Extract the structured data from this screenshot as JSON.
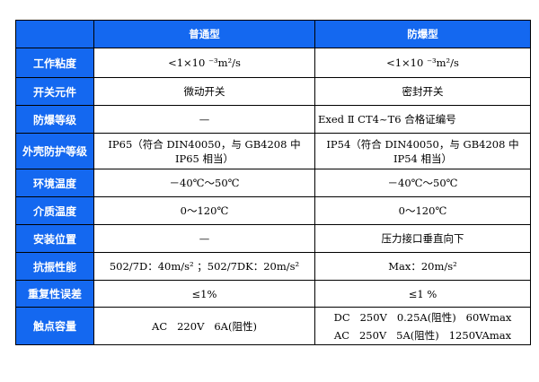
{
  "header": {
    "corner": "",
    "col1": "普通型",
    "col2": "防爆型"
  },
  "rows": [
    {
      "label": "工作粘度",
      "normal": "<1×10 ⁻³m²/s",
      "explosion": "<1×10 ⁻³m²/s"
    },
    {
      "label": "开关元件",
      "normal": "微动开关",
      "explosion": "密封开关"
    },
    {
      "label": "防爆等级",
      "normal": "—",
      "explosion": "Exed Ⅱ CT4~T6 合格证编号"
    },
    {
      "label": "外壳防护等级",
      "normal": "IP65（符合 DIN40050，与 GB4208 中 IP65 相当）",
      "explosion": "IP54（符合 DIN40050，与 GB4208 中 IP54 相当）"
    },
    {
      "label": "环境温度",
      "normal": "－40℃～50℃",
      "explosion": "－40℃～50℃"
    },
    {
      "label": "介质温度",
      "normal": "0～120℃",
      "explosion": "0～120℃"
    },
    {
      "label": "安装位置",
      "normal": "—",
      "explosion": "压力接口垂直向下"
    },
    {
      "label": "抗振性能",
      "normal": "502/7D：40m/s² ；502/7DK：20m/s²",
      "explosion": "Max：20m/s²"
    },
    {
      "label": "重复性误差",
      "normal": "≤1%",
      "explosion": "≤1 %"
    },
    {
      "label": "触点容量",
      "normal": "AC   220V   6A(阻性)",
      "explosion_line1": "DC   250V   0.25A(阻性)   60Wmax",
      "explosion_line2": "AC   250V   5A(阻性)   1250VAmax"
    }
  ]
}
